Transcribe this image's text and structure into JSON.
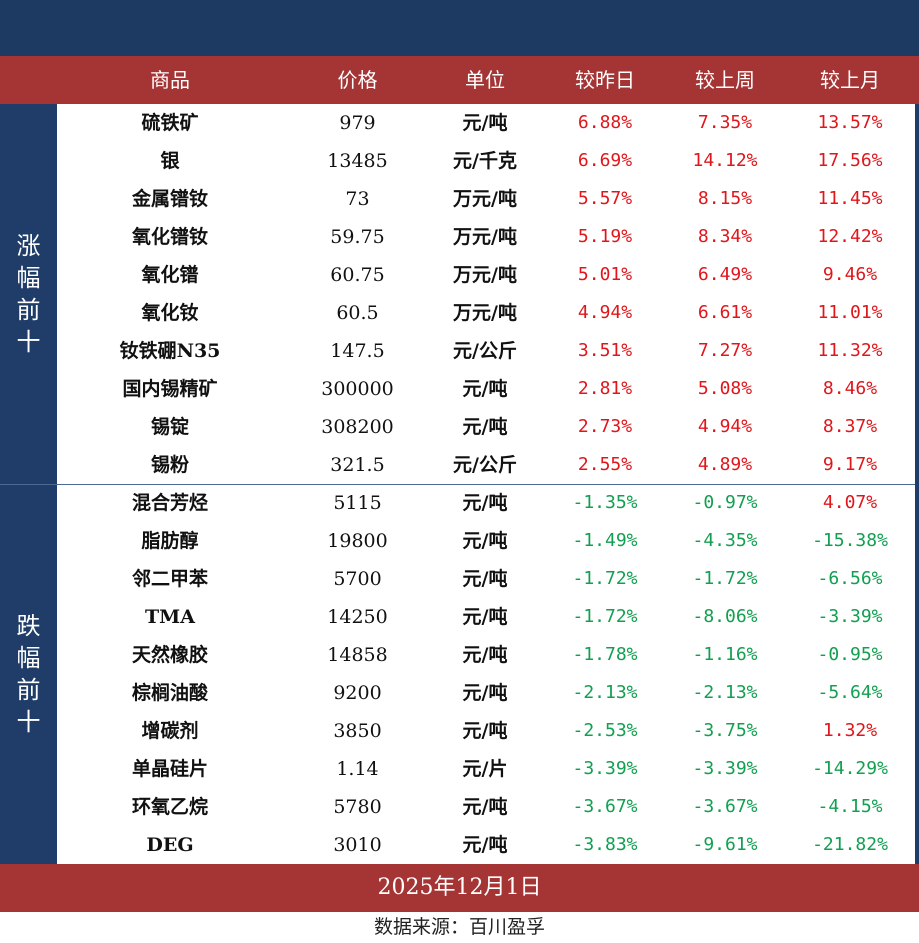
{
  "header": {
    "columns": [
      "商品",
      "价格",
      "单位",
      "较昨日",
      "较上周",
      "较上月"
    ]
  },
  "sections": {
    "up_label": [
      "涨",
      "幅",
      "前",
      "十"
    ],
    "down_label": [
      "跌",
      "幅",
      "前",
      "十"
    ]
  },
  "colors": {
    "up": "#e0161b",
    "down": "#12a050"
  },
  "chart_data": {
    "type": "table",
    "columns": [
      "商品",
      "价格",
      "单位",
      "较昨日",
      "较上周",
      "较上月"
    ],
    "rows": [
      {
        "name": "硫铁矿",
        "price": "979",
        "unit": "元/吨",
        "day": "6.88%",
        "week": "7.35%",
        "month": "13.57%"
      },
      {
        "name": "银",
        "price": "13485",
        "unit": "元/千克",
        "day": "6.69%",
        "week": "14.12%",
        "month": "17.56%"
      },
      {
        "name": "金属镨钕",
        "price": "73",
        "unit": "万元/吨",
        "day": "5.57%",
        "week": "8.15%",
        "month": "11.45%"
      },
      {
        "name": "氧化镨钕",
        "price": "59.75",
        "unit": "万元/吨",
        "day": "5.19%",
        "week": "8.34%",
        "month": "12.42%"
      },
      {
        "name": "氧化镨",
        "price": "60.75",
        "unit": "万元/吨",
        "day": "5.01%",
        "week": "6.49%",
        "month": "9.46%"
      },
      {
        "name": "氧化钕",
        "price": "60.5",
        "unit": "万元/吨",
        "day": "4.94%",
        "week": "6.61%",
        "month": "11.01%"
      },
      {
        "name": "钕铁硼N35",
        "price": "147.5",
        "unit": "元/公斤",
        "day": "3.51%",
        "week": "7.27%",
        "month": "11.32%"
      },
      {
        "name": "国内锡精矿",
        "price": "300000",
        "unit": "元/吨",
        "day": "2.81%",
        "week": "5.08%",
        "month": "8.46%"
      },
      {
        "name": "锡锭",
        "price": "308200",
        "unit": "元/吨",
        "day": "2.73%",
        "week": "4.94%",
        "month": "8.37%"
      },
      {
        "name": "锡粉",
        "price": "321.5",
        "unit": "元/公斤",
        "day": "2.55%",
        "week": "4.89%",
        "month": "9.17%"
      },
      {
        "name": "混合芳烃",
        "price": "5115",
        "unit": "元/吨",
        "day": "-1.35%",
        "week": "-0.97%",
        "month": "4.07%"
      },
      {
        "name": "脂肪醇",
        "price": "19800",
        "unit": "元/吨",
        "day": "-1.49%",
        "week": "-4.35%",
        "month": "-15.38%"
      },
      {
        "name": "邻二甲苯",
        "price": "5700",
        "unit": "元/吨",
        "day": "-1.72%",
        "week": "-1.72%",
        "month": "-6.56%"
      },
      {
        "name": "TMA",
        "price": "14250",
        "unit": "元/吨",
        "day": "-1.72%",
        "week": "-8.06%",
        "month": "-3.39%"
      },
      {
        "name": "天然橡胶",
        "price": "14858",
        "unit": "元/吨",
        "day": "-1.78%",
        "week": "-1.16%",
        "month": "-0.95%"
      },
      {
        "name": "棕榈油酸",
        "price": "9200",
        "unit": "元/吨",
        "day": "-2.13%",
        "week": "-2.13%",
        "month": "-5.64%"
      },
      {
        "name": "增碳剂",
        "price": "3850",
        "unit": "元/吨",
        "day": "-2.53%",
        "week": "-3.75%",
        "month": "1.32%"
      },
      {
        "name": "单晶硅片",
        "price": "1.14",
        "unit": "元/片",
        "day": "-3.39%",
        "week": "-3.39%",
        "month": "-14.29%"
      },
      {
        "name": "环氧乙烷",
        "price": "5780",
        "unit": "元/吨",
        "day": "-3.67%",
        "week": "-3.67%",
        "month": "-4.15%"
      },
      {
        "name": "DEG",
        "price": "3010",
        "unit": "元/吨",
        "day": "-3.83%",
        "week": "-9.61%",
        "month": "-21.82%"
      }
    ]
  },
  "footer": {
    "date": "2025年12月1日",
    "source": "数据来源：百川盈孚"
  }
}
